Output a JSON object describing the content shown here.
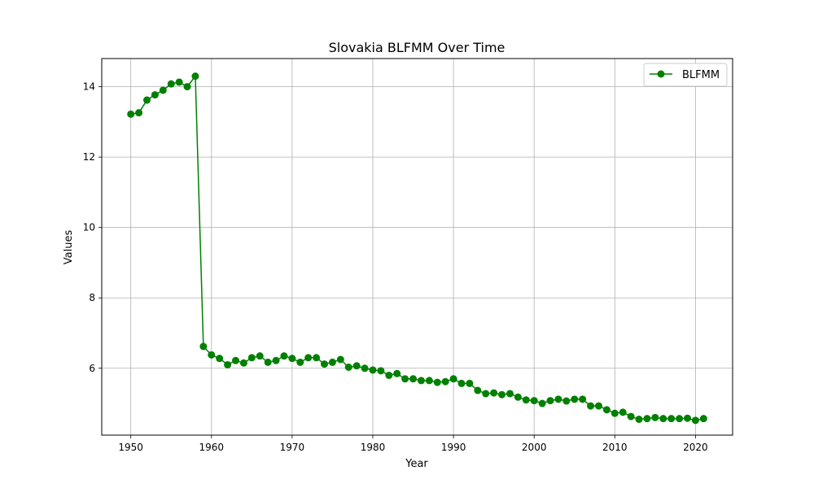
{
  "chart_data": {
    "type": "line",
    "title": "Slovakia BLFMM Over Time",
    "xlabel": "Year",
    "ylabel": "Values",
    "xlim": [
      1946.4,
      2024.6
    ],
    "ylim": [
      4.1,
      14.8
    ],
    "xticks": [
      1950,
      1960,
      1970,
      1980,
      1990,
      2000,
      2010,
      2020
    ],
    "yticks": [
      6,
      8,
      10,
      12,
      14
    ],
    "grid": true,
    "legend_position": "top-right",
    "colors": {
      "series": "#008000",
      "grid": "#b0b0b0"
    },
    "series": [
      {
        "name": "BLFMM",
        "marker": "circle",
        "x": [
          1950,
          1951,
          1952,
          1953,
          1954,
          1955,
          1956,
          1957,
          1958,
          1959,
          1960,
          1961,
          1962,
          1963,
          1964,
          1965,
          1966,
          1967,
          1968,
          1969,
          1970,
          1971,
          1972,
          1973,
          1974,
          1975,
          1976,
          1977,
          1978,
          1979,
          1980,
          1981,
          1982,
          1983,
          1984,
          1985,
          1986,
          1987,
          1988,
          1989,
          1990,
          1991,
          1992,
          1993,
          1994,
          1995,
          1996,
          1997,
          1998,
          1999,
          2000,
          2001,
          2002,
          2003,
          2004,
          2005,
          2006,
          2007,
          2008,
          2009,
          2010,
          2011,
          2012,
          2013,
          2014,
          2015,
          2016,
          2017,
          2018,
          2019,
          2020,
          2021
        ],
        "values": [
          13.22,
          13.26,
          13.62,
          13.77,
          13.9,
          14.08,
          14.13,
          14.0,
          14.3,
          6.62,
          6.38,
          6.28,
          6.1,
          6.22,
          6.15,
          6.3,
          6.35,
          6.17,
          6.22,
          6.35,
          6.28,
          6.17,
          6.3,
          6.3,
          6.12,
          6.17,
          6.25,
          6.03,
          6.07,
          6.0,
          5.95,
          5.93,
          5.8,
          5.85,
          5.7,
          5.7,
          5.65,
          5.65,
          5.6,
          5.62,
          5.7,
          5.57,
          5.57,
          5.37,
          5.28,
          5.3,
          5.25,
          5.28,
          5.18,
          5.1,
          5.08,
          5.0,
          5.08,
          5.12,
          5.07,
          5.12,
          5.12,
          4.93,
          4.93,
          4.82,
          4.72,
          4.75,
          4.63,
          4.55,
          4.57,
          4.6,
          4.57,
          4.57,
          4.57,
          4.58,
          4.52,
          4.57
        ]
      }
    ]
  }
}
